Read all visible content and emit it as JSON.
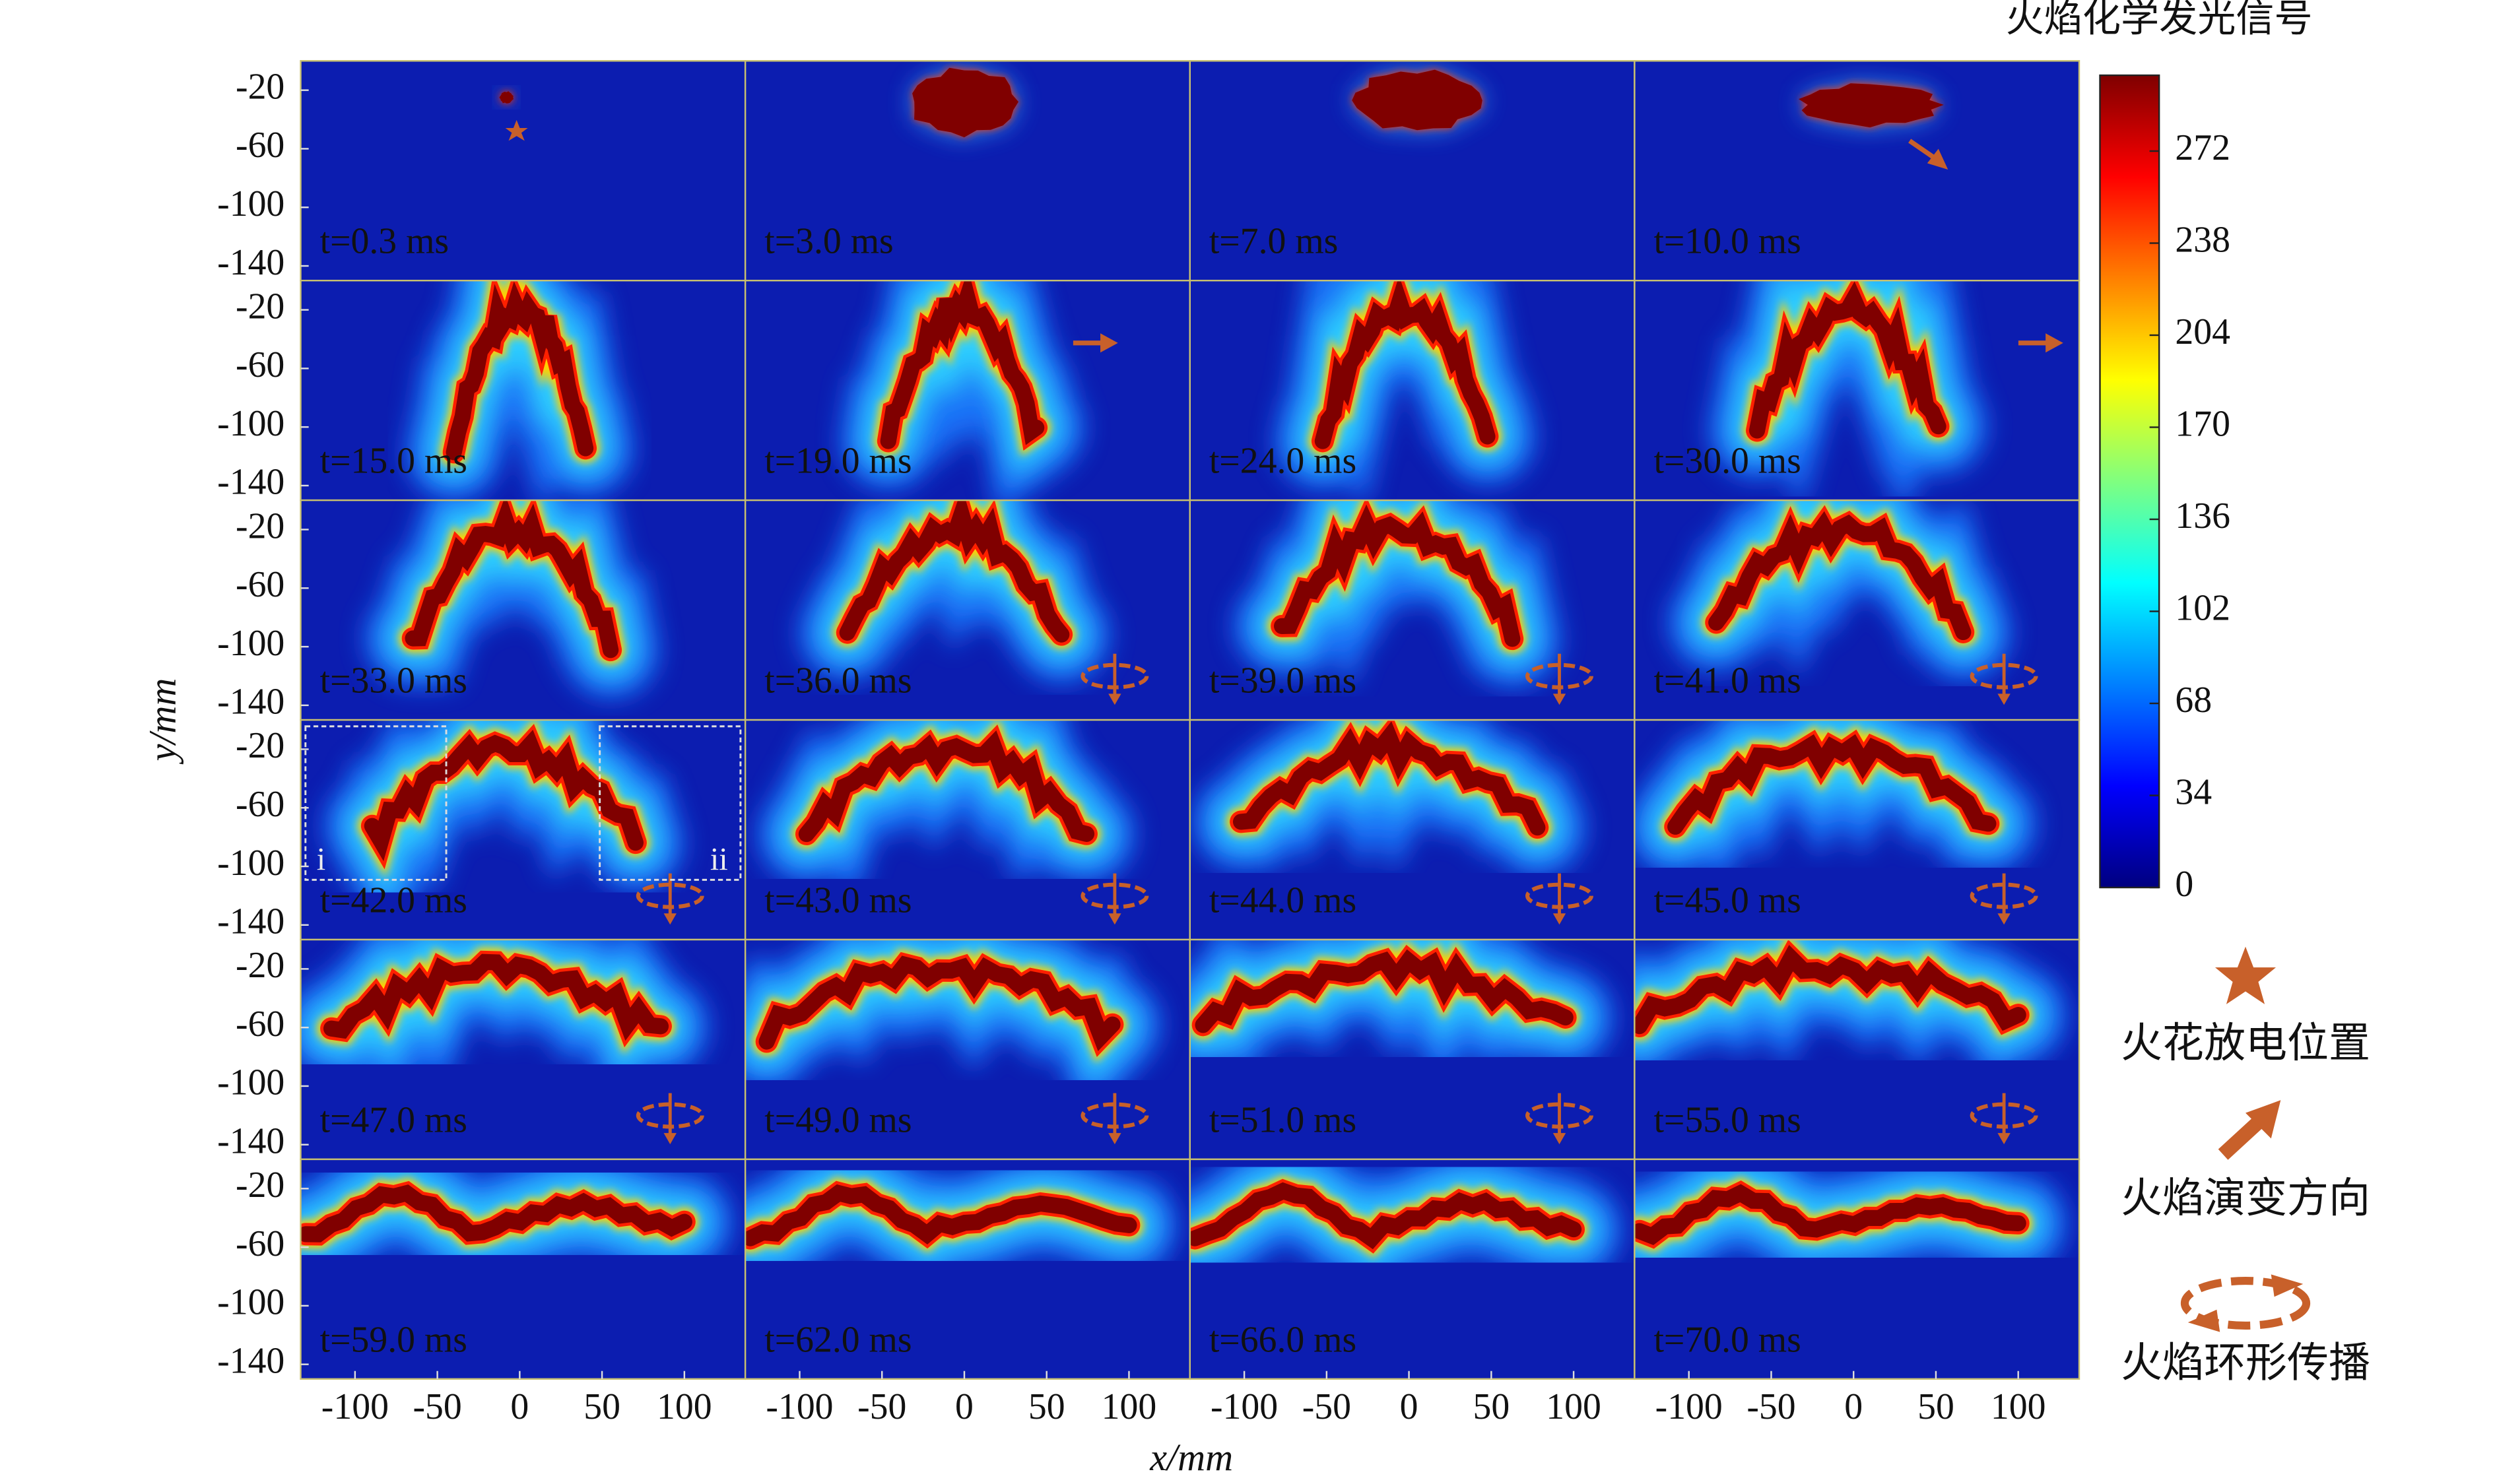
{
  "figure": {
    "colorbar_title": "火焰化学发光信号",
    "colorbar_lim": [
      0,
      300
    ],
    "colorbar_ticks": [
      0,
      34,
      68,
      102,
      136,
      170,
      204,
      238,
      272
    ],
    "x_label": "x/mm",
    "y_label": "y/mm",
    "xlim": [
      -133,
      137
    ],
    "ylim": [
      -150,
      0
    ],
    "xticks": [
      -100,
      -50,
      0,
      50,
      100
    ],
    "yticks": [
      -20,
      -60,
      -100,
      -140
    ],
    "panels": [
      "t=0.3 ms",
      "t=3.0 ms",
      "t=7.0 ms",
      "t=10.0 ms",
      "t=15.0 ms",
      "t=19.0 ms",
      "t=24.0 ms",
      "t=30.0 ms",
      "t=33.0 ms",
      "t=36.0 ms",
      "t=39.0 ms",
      "t=41.0 ms",
      "t=42.0 ms",
      "t=43.0 ms",
      "t=44.0 ms",
      "t=45.0 ms",
      "t=47.0 ms",
      "t=49.0 ms",
      "t=51.0 ms",
      "t=55.0 ms",
      "t=59.0 ms",
      "t=62.0 ms",
      "t=66.0 ms",
      "t=70.0 ms"
    ],
    "inset_labels": [
      "i",
      "ii"
    ]
  },
  "legend": [
    "火花放电位置",
    "火焰演变方向",
    "火焰环形传播"
  ]
}
